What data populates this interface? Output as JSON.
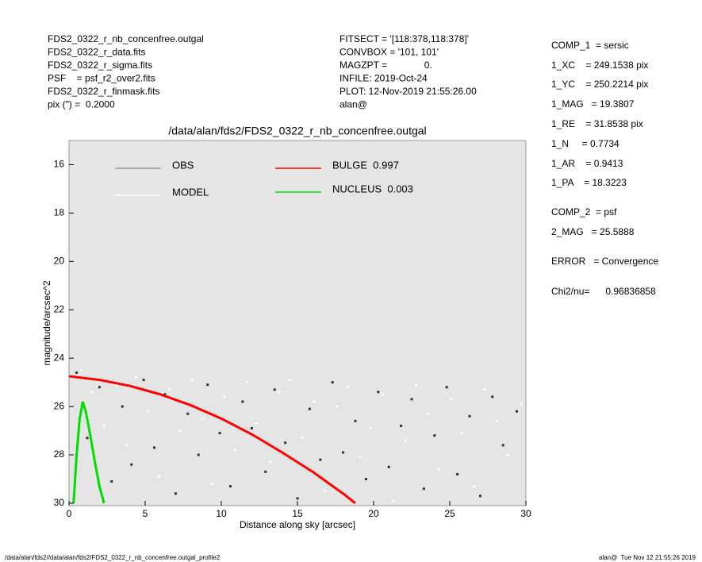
{
  "header_left": [
    "FDS2_0322_r_nb_concenfree.outgal",
    "FDS2_0322_r_data.fits",
    "FDS2_0322_r_sigma.fits",
    "PSF    = psf_r2_over2.fits",
    "FDS2_0322_r_finmask.fits",
    "pix (\") =  0.2000"
  ],
  "header_middle": [
    "FITSECT = '[118:378,118:378]'",
    "CONVBOX = '101, 101'",
    "MAGZPT =              0.",
    "INFILE: 2019-Oct-24",
    "PLOT: 12-Nov-2019 21:55:26.00",
    "alan@"
  ],
  "header_right": [
    "COMP_1  = sersic",
    "1_XC    = 249.1538 pix",
    "1_YC    = 250.2214 pix",
    "1_MAG   = 19.3807",
    "1_RE    = 31.8538 pix",
    "1_N     = 0.7734",
    "1_AR    = 0.9413",
    "1_PA    = 18.3223",
    "COMP_2  = psf",
    "2_MAG   = 25.5888",
    "ERROR   = Convergence",
    "Chi2/nu=      0.96836858"
  ],
  "footer_left": "/data/alan/fds2//data/alan/fds2/FDS2_0322_r_nb_concenfree.outgal_profile2",
  "footer_right": "alan@  Tue Nov 12 21:55:26 2019",
  "chart_data": {
    "type": "scatter",
    "title": "/data/alan/fds2/FDS2_0322_r_nb_concenfree.outgal",
    "x_label": "Distance along sky [arcsec]",
    "y_label": "magnitude/arcsec^2",
    "xlim": [
      0,
      30
    ],
    "ylim": [
      15,
      30.1
    ],
    "y_inverted": true,
    "xticks": [
      0,
      5,
      10,
      15,
      20,
      25,
      30
    ],
    "yticks": [
      16,
      18,
      20,
      22,
      24,
      26,
      28,
      30
    ],
    "background": "#e5e5e5",
    "series": [
      {
        "name": "OBS",
        "color": "#999999",
        "point_color": "#333333",
        "kind": "points",
        "x": [
          0.5,
          1.2,
          2.0,
          2.8,
          3.5,
          4.1,
          4.9,
          5.6,
          6.3,
          7.0,
          7.8,
          8.5,
          9.1,
          9.9,
          10.6,
          11.4,
          12.0,
          12.9,
          13.5,
          14.2,
          15.0,
          15.8,
          16.5,
          17.3,
          18.0,
          18.8,
          19.5,
          20.3,
          21.0,
          21.8,
          22.5,
          23.3,
          24.0,
          24.8,
          25.5,
          26.3,
          27.0,
          27.8,
          28.5,
          29.4
        ],
        "values": [
          24.6,
          27.3,
          25.2,
          29.1,
          26.0,
          28.4,
          24.9,
          27.7,
          25.5,
          29.6,
          26.3,
          28.0,
          25.1,
          27.1,
          29.3,
          25.8,
          26.9,
          28.7,
          25.3,
          27.5,
          29.8,
          26.1,
          28.2,
          25.0,
          27.9,
          26.6,
          29.0,
          25.4,
          28.5,
          26.8,
          25.7,
          29.4,
          27.2,
          25.2,
          28.8,
          26.4,
          29.7,
          25.6,
          27.6,
          26.2
        ]
      },
      {
        "name": "MODEL",
        "color": "#ffffff",
        "point_color": "#ffffff",
        "kind": "points",
        "x": [
          0.8,
          1.5,
          2.3,
          3.1,
          3.8,
          4.4,
          5.2,
          5.9,
          6.6,
          7.3,
          8.1,
          8.8,
          9.4,
          10.2,
          10.9,
          11.7,
          12.3,
          13.2,
          13.8,
          14.5,
          15.3,
          16.1,
          16.8,
          17.6,
          18.3,
          19.1,
          19.8,
          20.6,
          21.3,
          22.1,
          22.8,
          23.6,
          24.3,
          25.1,
          25.8,
          26.6,
          27.3,
          28.1,
          28.8,
          29.7
        ],
        "values": [
          24.5,
          25.4,
          26.8,
          25.1,
          27.6,
          24.8,
          26.2,
          28.9,
          25.3,
          27.0,
          24.9,
          26.5,
          29.2,
          25.6,
          27.8,
          25.0,
          26.7,
          28.3,
          25.4,
          24.9,
          27.3,
          25.8,
          29.5,
          26.0,
          25.2,
          28.1,
          26.9,
          25.5,
          29.9,
          27.4,
          25.1,
          26.3,
          28.6,
          25.7,
          27.1,
          29.3,
          25.3,
          26.6,
          28.0,
          25.9
        ]
      },
      {
        "name": "BULGE  0.997",
        "color": "#ff0000",
        "kind": "line",
        "x": [
          0,
          2,
          4,
          6,
          8,
          10,
          12,
          14,
          16,
          18,
          18.8
        ],
        "values": [
          24.75,
          24.9,
          25.15,
          25.5,
          25.95,
          26.5,
          27.15,
          27.9,
          28.7,
          29.6,
          30.0
        ]
      },
      {
        "name": "NUCLEUS  0.003",
        "color": "#00dd00",
        "kind": "line",
        "x": [
          0.3,
          0.5,
          0.7,
          0.9,
          1.1,
          1.4,
          1.7,
          2.0,
          2.3
        ],
        "values": [
          30.0,
          28.0,
          26.5,
          25.8,
          26.2,
          27.2,
          28.3,
          29.3,
          30.0
        ]
      }
    ]
  }
}
